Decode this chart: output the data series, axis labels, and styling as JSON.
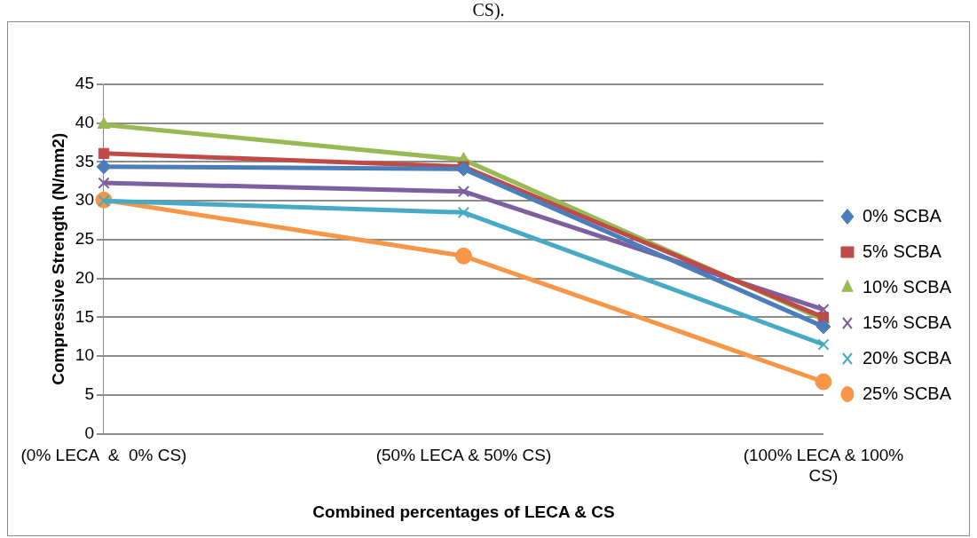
{
  "chart_data": {
    "type": "line",
    "xlabel": "Combined percentages of LECA & CS",
    "ylabel": "Compressive Strength (N/mm2)",
    "annotations": [
      "CS)."
    ],
    "categories": [
      "(0% LECA  &  0% CS)",
      "(50% LECA & 50% CS)",
      "(100% LECA & 100% CS)"
    ],
    "series": [
      {
        "name": "0% SCBA",
        "color": "#4a7ebb",
        "marker": "diamond",
        "values": [
          34.4,
          34.1,
          13.8
        ]
      },
      {
        "name": "5% SCBA",
        "color": "#be4b48",
        "marker": "square",
        "values": [
          36.1,
          34.4,
          15
        ]
      },
      {
        "name": "10% SCBA",
        "color": "#98b954",
        "marker": "triangle",
        "values": [
          39.8,
          35.3,
          14.7
        ]
      },
      {
        "name": "15% SCBA",
        "color": "#7d60a0",
        "marker": "cross",
        "values": [
          32.3,
          31.2,
          16
        ]
      },
      {
        "name": "20% SCBA",
        "color": "#46aac5",
        "marker": "cross",
        "values": [
          30,
          28.5,
          11.5
        ]
      },
      {
        "name": "25% SCBA",
        "color": "#f79646",
        "marker": "circle",
        "values": [
          30.1,
          22.9,
          6.7
        ]
      }
    ],
    "ylim": [
      0,
      45
    ],
    "yticks": [
      0,
      5,
      10,
      15,
      20,
      25,
      30,
      35,
      40,
      45
    ],
    "grid": "y",
    "legend": "right"
  }
}
